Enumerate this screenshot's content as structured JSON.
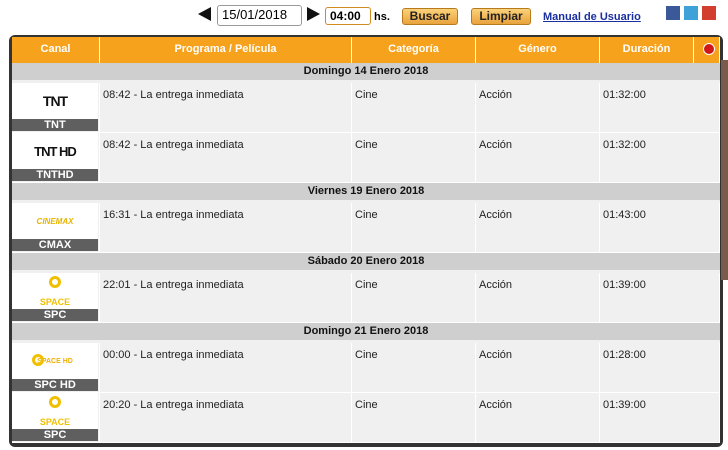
{
  "toolbar": {
    "date": "15/01/2018",
    "time": "04:00",
    "time_unit": "hs.",
    "search_button": "Buscar",
    "clear_button": "Limpiar",
    "manual_link": "Manual de Usuario"
  },
  "table": {
    "columns": [
      "Canal",
      "Programa / Película",
      "Categoría",
      "Género",
      "Duración"
    ],
    "groups": [
      {
        "date": "Domingo 14 Enero 2018",
        "rows": [
          {
            "logo": "TNT",
            "channel": "TNT",
            "program": "08:42 - La entrega inmediata",
            "category": "Cine",
            "genre": "Acción",
            "duration": "01:32:00"
          },
          {
            "logo": "TNT HD",
            "channel": "TNTHD",
            "program": "08:42 - La entrega inmediata",
            "category": "Cine",
            "genre": "Acción",
            "duration": "01:32:00"
          }
        ]
      },
      {
        "date": "Viernes 19 Enero 2018",
        "rows": [
          {
            "logo": "CINEMAX",
            "channel": "CMAX",
            "program": "16:31 - La entrega inmediata",
            "category": "Cine",
            "genre": "Acción",
            "duration": "01:43:00"
          }
        ]
      },
      {
        "date": "Sábado 20 Enero 2018",
        "rows": [
          {
            "logo": "SPACE",
            "channel": "SPC",
            "program": "22:01 - La entrega inmediata",
            "category": "Cine",
            "genre": "Acción",
            "duration": "01:39:00"
          }
        ]
      },
      {
        "date": "Domingo 21 Enero 2018",
        "rows": [
          {
            "logo": "SPACE HD",
            "channel": "SPC HD",
            "program": "00:00 - La entrega inmediata",
            "category": "Cine",
            "genre": "Acción",
            "duration": "01:28:00"
          },
          {
            "logo": "SPACE",
            "channel": "SPC",
            "program": "20:20 - La entrega inmediata",
            "category": "Cine",
            "genre": "Acción",
            "duration": "01:39:00"
          }
        ]
      }
    ]
  }
}
